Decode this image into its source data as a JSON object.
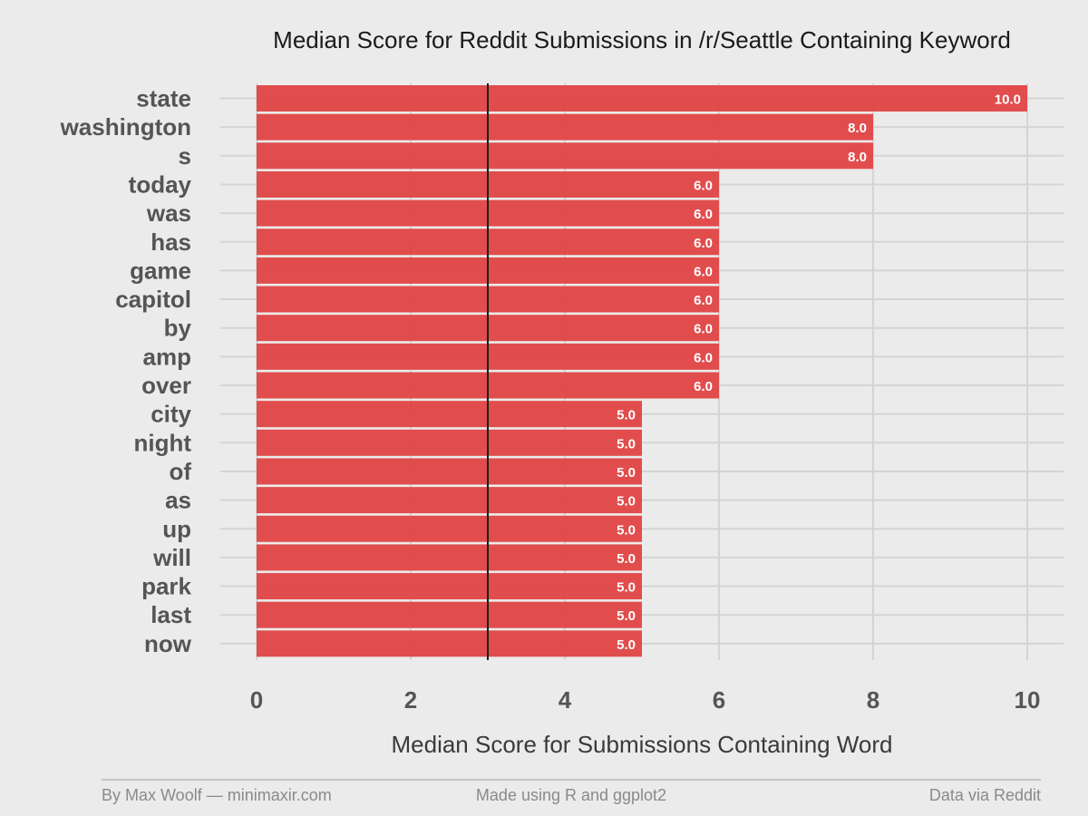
{
  "chart_data": {
    "type": "bar",
    "orientation": "horizontal",
    "title": "Median Score for Reddit Submissions in /r/Seattle Containing Keyword",
    "xlabel": "Median Score for Submissions Containing Word",
    "ylabel": "",
    "categories": [
      "state",
      "washington",
      "s",
      "today",
      "was",
      "has",
      "game",
      "capitol",
      "by",
      "amp",
      "over",
      "city",
      "night",
      "of",
      "as",
      "up",
      "will",
      "park",
      "last",
      "now"
    ],
    "values": [
      10.0,
      8.0,
      8.0,
      6.0,
      6.0,
      6.0,
      6.0,
      6.0,
      6.0,
      6.0,
      6.0,
      5.0,
      5.0,
      5.0,
      5.0,
      5.0,
      5.0,
      5.0,
      5.0,
      5.0
    ],
    "value_labels": [
      "10.0",
      "8.0",
      "8.0",
      "6.0",
      "6.0",
      "6.0",
      "6.0",
      "6.0",
      "6.0",
      "6.0",
      "6.0",
      "5.0",
      "5.0",
      "5.0",
      "5.0",
      "5.0",
      "5.0",
      "5.0",
      "5.0",
      "5.0"
    ],
    "xlim": [
      0,
      10
    ],
    "x_ticks": [
      0,
      2,
      4,
      6,
      8,
      10
    ],
    "reference_line": 3,
    "grid": true,
    "bar_color": "#e04444",
    "reference_line_color": "#1a1a1a"
  },
  "footer": {
    "left": "By Max Woolf — minimaxir.com",
    "center": "Made using R and ggplot2",
    "right": "Data via Reddit"
  }
}
